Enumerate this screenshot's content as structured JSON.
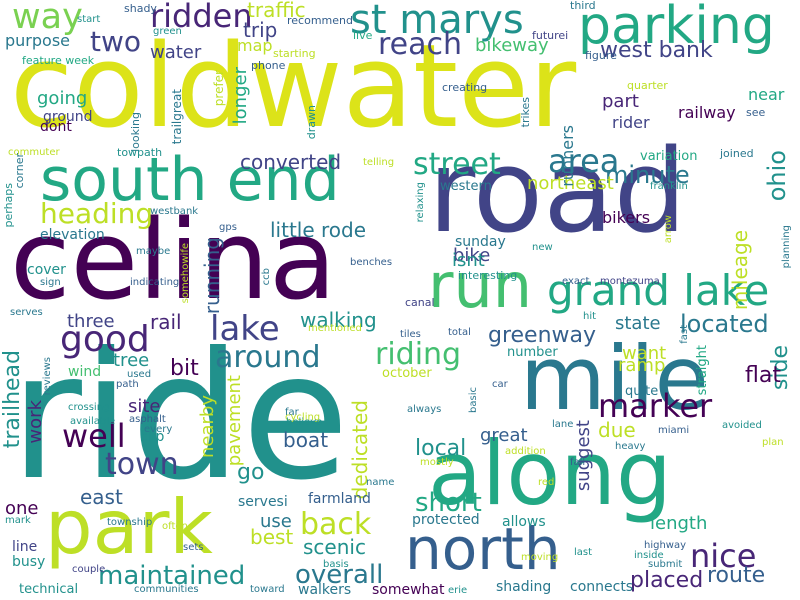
{
  "palette": {
    "background": "#ffffff",
    "dark-purple": "#440154",
    "purple": "#482677",
    "indigo": "#414487",
    "blue": "#355f8d",
    "steel-blue": "#2a788e",
    "teal": "#21918c",
    "green-teal": "#22a884",
    "green": "#44bf70",
    "light-green": "#7ad151",
    "lime": "#bddf26",
    "yellow": "#dce319"
  },
  "words": [
    {
      "text": "ride",
      "color": "#21918c"
    },
    {
      "text": "coldwater",
      "color": "#dce319"
    },
    {
      "text": "road",
      "color": "#414487"
    },
    {
      "text": "celina",
      "color": "#440154"
    },
    {
      "text": "mile",
      "color": "#2a788e"
    },
    {
      "text": "along",
      "color": "#22a884"
    },
    {
      "text": "park",
      "color": "#bddf26"
    },
    {
      "text": "south end",
      "color": "#22a884"
    },
    {
      "text": "run",
      "color": "#44bf70"
    },
    {
      "text": "north",
      "color": "#355f8d"
    },
    {
      "text": "parking",
      "color": "#22a884"
    },
    {
      "text": "grand lake",
      "color": "#22a884"
    },
    {
      "text": "st marys",
      "color": "#21918c"
    },
    {
      "text": "way",
      "color": "#7ad151"
    },
    {
      "text": "ridden",
      "color": "#482677"
    },
    {
      "text": "two",
      "color": "#414487"
    },
    {
      "text": "reach",
      "color": "#414487"
    },
    {
      "text": "heading",
      "color": "#bddf26"
    },
    {
      "text": "lake",
      "color": "#414487"
    },
    {
      "text": "good",
      "color": "#482677"
    },
    {
      "text": "around",
      "color": "#2a788e"
    },
    {
      "text": "riding",
      "color": "#44bf70"
    },
    {
      "text": "street",
      "color": "#22a884"
    },
    {
      "text": "area",
      "color": "#2a788e"
    },
    {
      "text": "back",
      "color": "#bddf26"
    },
    {
      "text": "well",
      "color": "#440154"
    },
    {
      "text": "town",
      "color": "#414487"
    },
    {
      "text": "marker",
      "color": "#440154"
    },
    {
      "text": "nice",
      "color": "#482677"
    },
    {
      "text": "maintained",
      "color": "#21918c"
    },
    {
      "text": "overall",
      "color": "#2a788e"
    },
    {
      "text": "short",
      "color": "#22a884"
    },
    {
      "text": "trailhead",
      "color": "#21918c"
    },
    {
      "text": "traffic",
      "color": "#bddf26"
    },
    {
      "text": "trip",
      "color": "#414487"
    },
    {
      "text": "bikeway",
      "color": "#44bf70"
    },
    {
      "text": "west bank",
      "color": "#414487"
    },
    {
      "text": "minute",
      "color": "#2a788e"
    },
    {
      "text": "ohio",
      "color": "#21918c"
    },
    {
      "text": "converted",
      "color": "#414487"
    },
    {
      "text": "northeast",
      "color": "#bddf26"
    },
    {
      "text": "little rode",
      "color": "#2a788e"
    },
    {
      "text": "running",
      "color": "#355f8d"
    },
    {
      "text": "walking",
      "color": "#21918c"
    },
    {
      "text": "located",
      "color": "#2a788e"
    },
    {
      "text": "state",
      "color": "#2a788e"
    },
    {
      "text": "greenway",
      "color": "#355f8d"
    },
    {
      "text": "mileage",
      "color": "#bddf26"
    },
    {
      "text": "side",
      "color": "#21918c"
    },
    {
      "text": "flat",
      "color": "#440154"
    },
    {
      "text": "want",
      "color": "#bddf26"
    },
    {
      "text": "ramp",
      "color": "#bddf26"
    },
    {
      "text": "three",
      "color": "#414487"
    },
    {
      "text": "rail",
      "color": "#482677"
    },
    {
      "text": "bit",
      "color": "#440154"
    },
    {
      "text": "tree",
      "color": "#21918c"
    },
    {
      "text": "site",
      "color": "#482677"
    },
    {
      "text": "boat",
      "color": "#355f8d"
    },
    {
      "text": "go",
      "color": "#21918c"
    },
    {
      "text": "east",
      "color": "#355f8d"
    },
    {
      "text": "pavement",
      "color": "#bddf26"
    },
    {
      "text": "nearby",
      "color": "#bddf26"
    },
    {
      "text": "dedicated",
      "color": "#bddf26"
    },
    {
      "text": "local",
      "color": "#21918c"
    },
    {
      "text": "great",
      "color": "#355f8d"
    },
    {
      "text": "due",
      "color": "#bddf26"
    },
    {
      "text": "suggest",
      "color": "#414487"
    },
    {
      "text": "length",
      "color": "#22a884"
    },
    {
      "text": "placed",
      "color": "#482677"
    },
    {
      "text": "route",
      "color": "#355f8d"
    },
    {
      "text": "scenic",
      "color": "#21918c"
    },
    {
      "text": "use",
      "color": "#2a788e"
    },
    {
      "text": "best",
      "color": "#bddf26"
    },
    {
      "text": "one",
      "color": "#440154"
    },
    {
      "text": "work",
      "color": "#482677"
    },
    {
      "text": "purpose",
      "color": "#2a788e"
    },
    {
      "text": "going",
      "color": "#22a884"
    },
    {
      "text": "water",
      "color": "#414487"
    },
    {
      "text": "map",
      "color": "#bddf26"
    },
    {
      "text": "part",
      "color": "#482677"
    },
    {
      "text": "rider",
      "color": "#414487"
    },
    {
      "text": "railway",
      "color": "#440154"
    },
    {
      "text": "near",
      "color": "#22a884"
    },
    {
      "text": "longer",
      "color": "#22a884"
    },
    {
      "text": "bike",
      "color": "#414487"
    },
    {
      "text": "bikers",
      "color": "#440154"
    },
    {
      "text": "isnt",
      "color": "#21918c"
    },
    {
      "text": "sunday",
      "color": "#2a788e"
    },
    {
      "text": "runners",
      "color": "#2a788e"
    },
    {
      "text": "dont",
      "color": "#440154"
    },
    {
      "text": "ground",
      "color": "#414487"
    },
    {
      "text": "elevation",
      "color": "#2a788e"
    },
    {
      "text": "cover",
      "color": "#21918c"
    },
    {
      "text": "wind",
      "color": "#44bf70"
    },
    {
      "text": "clip",
      "color": "#21918c"
    },
    {
      "text": "servesi",
      "color": "#2a788e"
    },
    {
      "text": "farmland",
      "color": "#355f8d"
    },
    {
      "text": "protected",
      "color": "#2a788e"
    },
    {
      "text": "allows",
      "color": "#21918c"
    },
    {
      "text": "connects",
      "color": "#2a788e"
    },
    {
      "text": "somewhat",
      "color": "#440154"
    },
    {
      "text": "walkers",
      "color": "#2a788e"
    },
    {
      "text": "shading",
      "color": "#2a788e"
    },
    {
      "text": "busy",
      "color": "#21918c"
    },
    {
      "text": "line",
      "color": "#414487"
    },
    {
      "text": "technical",
      "color": "#21918c"
    },
    {
      "text": "october",
      "color": "#bddf26"
    },
    {
      "text": "number",
      "color": "#21918c"
    },
    {
      "text": "quite",
      "color": "#2a788e"
    },
    {
      "text": "straight",
      "color": "#22a884"
    },
    {
      "text": "variation",
      "color": "#22a884"
    },
    {
      "text": "western",
      "color": "#2a788e"
    },
    {
      "text": "interesting",
      "color": "#21918c"
    },
    {
      "text": "canal",
      "color": "#414487"
    },
    {
      "text": "trailgreat",
      "color": "#2a788e"
    },
    {
      "text": "prefer",
      "color": "#bddf26"
    },
    {
      "text": "phone",
      "color": "#355f8d"
    },
    {
      "text": "starting",
      "color": "#bddf26"
    },
    {
      "text": "futurei",
      "color": "#414487"
    },
    {
      "text": "figure",
      "color": "#355f8d"
    },
    {
      "text": "quarter",
      "color": "#bddf26"
    },
    {
      "text": "see",
      "color": "#355f8d"
    },
    {
      "text": "joined",
      "color": "#2a788e"
    },
    {
      "text": "creating",
      "color": "#355f8d"
    },
    {
      "text": "trikes",
      "color": "#2a788e"
    },
    {
      "text": "drawn",
      "color": "#21918c"
    },
    {
      "text": "recommend",
      "color": "#355f8d"
    },
    {
      "text": "live",
      "color": "#22a884"
    },
    {
      "text": "third",
      "color": "#2a788e"
    },
    {
      "text": "shady",
      "color": "#355f8d"
    },
    {
      "text": "start",
      "color": "#21918c"
    },
    {
      "text": "green",
      "color": "#21918c"
    },
    {
      "text": "feature week",
      "color": "#22a884"
    },
    {
      "text": "looking",
      "color": "#2a788e"
    },
    {
      "text": "towpath",
      "color": "#21918c"
    },
    {
      "text": "commuter",
      "color": "#bddf26"
    },
    {
      "text": "corner",
      "color": "#2a788e"
    },
    {
      "text": "perhaps",
      "color": "#21918c"
    },
    {
      "text": "westbank",
      "color": "#2a788e"
    },
    {
      "text": "gps",
      "color": "#355f8d"
    },
    {
      "text": "maybe",
      "color": "#2a788e"
    },
    {
      "text": "indicating",
      "color": "#355f8d"
    },
    {
      "text": "sign",
      "color": "#2a788e"
    },
    {
      "text": "somehowife",
      "color": "#bddf26"
    },
    {
      "text": "ccb",
      "color": "#2a788e"
    },
    {
      "text": "benches",
      "color": "#355f8d"
    },
    {
      "text": "relaxing",
      "color": "#21918c"
    },
    {
      "text": "telling",
      "color": "#bddf26"
    },
    {
      "text": "franklin",
      "color": "#21918c"
    },
    {
      "text": "arrow",
      "color": "#bddf26"
    },
    {
      "text": "planning",
      "color": "#2a788e"
    },
    {
      "text": "new",
      "color": "#21918c"
    },
    {
      "text": "exact",
      "color": "#355f8d"
    },
    {
      "text": "montezuma",
      "color": "#414487"
    },
    {
      "text": "fast",
      "color": "#2a788e"
    },
    {
      "text": "hit",
      "color": "#21918c"
    },
    {
      "text": "serves",
      "color": "#2a788e"
    },
    {
      "text": "mentioned",
      "color": "#bddf26"
    },
    {
      "text": "tiles",
      "color": "#355f8d"
    },
    {
      "text": "total",
      "color": "#355f8d"
    },
    {
      "text": "reviews",
      "color": "#2a788e"
    },
    {
      "text": "used",
      "color": "#2a788e"
    },
    {
      "text": "path",
      "color": "#355f8d"
    },
    {
      "text": "crossing",
      "color": "#21918c"
    },
    {
      "text": "asphalt",
      "color": "#355f8d"
    },
    {
      "text": "available",
      "color": "#21918c"
    },
    {
      "text": "every",
      "color": "#2a788e"
    },
    {
      "text": "far",
      "color": "#2a788e"
    },
    {
      "text": "cycling",
      "color": "#bddf26"
    },
    {
      "text": "believe",
      "color": "#21918c"
    },
    {
      "text": "always",
      "color": "#2a788e"
    },
    {
      "text": "mostly",
      "color": "#bddf26"
    },
    {
      "text": "addition",
      "color": "#bddf26"
    },
    {
      "text": "basic",
      "color": "#2a788e"
    },
    {
      "text": "car",
      "color": "#355f8d"
    },
    {
      "text": "lane",
      "color": "#2a788e"
    },
    {
      "text": "miami",
      "color": "#355f8d"
    },
    {
      "text": "avoided",
      "color": "#21918c"
    },
    {
      "text": "heavy",
      "color": "#2a788e"
    },
    {
      "text": "plan",
      "color": "#bddf26"
    },
    {
      "text": "fall",
      "color": "#355f8d"
    },
    {
      "text": "red",
      "color": "#bddf26"
    },
    {
      "text": "name",
      "color": "#2a788e"
    },
    {
      "text": "mark",
      "color": "#21918c"
    },
    {
      "text": "township",
      "color": "#2a788e"
    },
    {
      "text": "often",
      "color": "#bddf26"
    },
    {
      "text": "sets",
      "color": "#355f8d"
    },
    {
      "text": "couple",
      "color": "#414487"
    },
    {
      "text": "basis",
      "color": "#21918c"
    },
    {
      "text": "communities",
      "color": "#2a788e"
    },
    {
      "text": "toward",
      "color": "#2a788e"
    },
    {
      "text": "moving",
      "color": "#bddf26"
    },
    {
      "text": "last",
      "color": "#21918c"
    },
    {
      "text": "erie",
      "color": "#21918c"
    },
    {
      "text": "highway",
      "color": "#355f8d"
    },
    {
      "text": "inside",
      "color": "#21918c"
    },
    {
      "text": "submit",
      "color": "#2a788e"
    }
  ]
}
